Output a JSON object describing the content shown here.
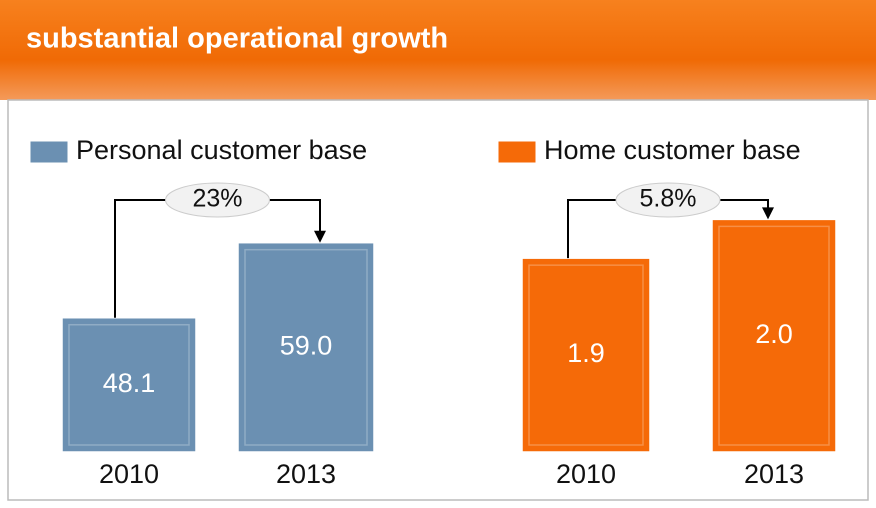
{
  "title": "substantial operational growth",
  "chart_data": [
    {
      "type": "bar",
      "categories": [
        "2010",
        "2013"
      ],
      "series": [
        {
          "name": "Personal customer base",
          "color": "#6b90b2",
          "values": [
            48.1,
            59.0
          ],
          "value_labels": [
            "48.1",
            "59.0"
          ]
        }
      ],
      "annotation": "23%",
      "ylim": [
        28.6,
        65.2
      ]
    },
    {
      "type": "bar",
      "categories": [
        "2010",
        "2013"
      ],
      "series": [
        {
          "name": "Home customer base",
          "color": "#f56a08",
          "values": [
            1.9,
            2.0
          ],
          "value_labels": [
            "1.9",
            "2.0"
          ]
        }
      ],
      "annotation": "5.8%",
      "ylim": [
        1.4,
        2.05
      ]
    }
  ]
}
